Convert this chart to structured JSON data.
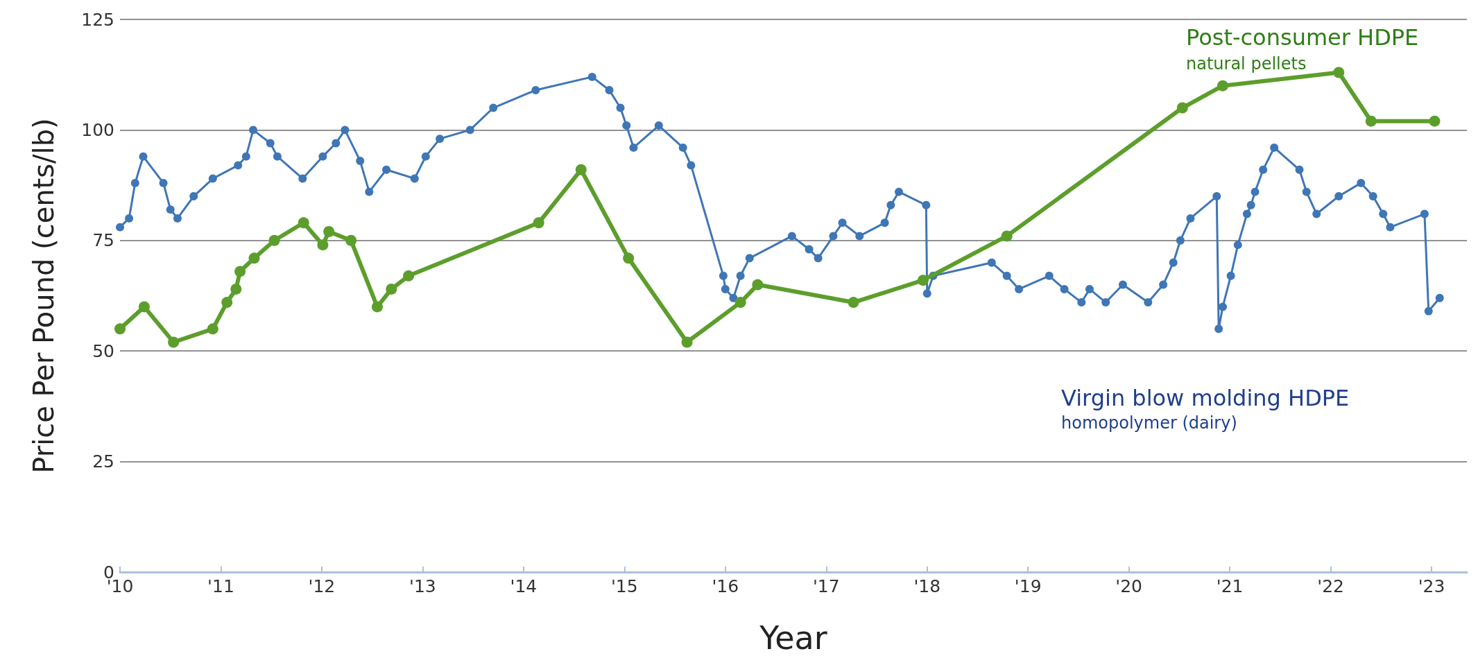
{
  "chart_data": {
    "type": "line",
    "xlabel": "Year",
    "ylabel": "Price Per Pound (cents/lb)",
    "xlim": [
      2010,
      2023.35
    ],
    "ylim": [
      0,
      125
    ],
    "xticks": [
      {
        "value": 2010,
        "label": "'10"
      },
      {
        "value": 2011,
        "label": "'11"
      },
      {
        "value": 2012,
        "label": "'12"
      },
      {
        "value": 2013,
        "label": "'13"
      },
      {
        "value": 2014,
        "label": "'14"
      },
      {
        "value": 2015,
        "label": "'15"
      },
      {
        "value": 2016,
        "label": "'16"
      },
      {
        "value": 2017,
        "label": "'17"
      },
      {
        "value": 2018,
        "label": "'18"
      },
      {
        "value": 2019,
        "label": "'19"
      },
      {
        "value": 2020,
        "label": "'20"
      },
      {
        "value": 2021,
        "label": "'21"
      },
      {
        "value": 2022,
        "label": "'22"
      },
      {
        "value": 2023,
        "label": "'23"
      }
    ],
    "yticks": [
      0,
      25,
      50,
      75,
      100,
      125
    ],
    "grid": "y",
    "marker": "circle",
    "line_style": "solid",
    "annotations": [
      "natural pellets",
      "homopolymer (dairy)"
    ],
    "series": [
      {
        "name": "Post-consumer HDPE",
        "color": "#5c9e2c",
        "x": [
          2010.0,
          2010.24,
          2010.53,
          2010.92,
          2011.06,
          2011.15,
          2011.19,
          2011.33,
          2011.53,
          2011.82,
          2012.01,
          2012.07,
          2012.29,
          2012.55,
          2012.69,
          2012.86,
          2014.15,
          2014.57,
          2015.04,
          2015.62,
          2016.15,
          2016.32,
          2017.27,
          2017.96,
          2018.79,
          2020.53,
          2020.93,
          2022.08,
          2022.4,
          2023.03
        ],
        "values": [
          55,
          60,
          52,
          55,
          61,
          64,
          68,
          71,
          75,
          79,
          74,
          77,
          75,
          60,
          64,
          67,
          79,
          91,
          71,
          52,
          61,
          65,
          61,
          66,
          76,
          105,
          110,
          113,
          102,
          102
        ]
      },
      {
        "name": "Virgin blow molding HDPE",
        "color": "#3f76b5",
        "x": [
          2010.0,
          2010.09,
          2010.15,
          2010.23,
          2010.43,
          2010.5,
          2010.57,
          2010.73,
          2010.92,
          2011.17,
          2011.25,
          2011.32,
          2011.49,
          2011.56,
          2011.81,
          2012.01,
          2012.14,
          2012.23,
          2012.38,
          2012.47,
          2012.64,
          2012.92,
          2013.03,
          2013.17,
          2013.47,
          2013.7,
          2014.12,
          2014.68,
          2014.85,
          2014.96,
          2015.02,
          2015.09,
          2015.34,
          2015.58,
          2015.66,
          2015.98,
          2016.0,
          2016.08,
          2016.15,
          2016.24,
          2016.66,
          2016.83,
          2016.92,
          2017.07,
          2017.16,
          2017.33,
          2017.58,
          2017.64,
          2017.72,
          2017.99,
          2018.0,
          2018.06,
          2018.64,
          2018.79,
          2018.91,
          2019.21,
          2019.36,
          2019.53,
          2019.61,
          2019.77,
          2019.94,
          2020.19,
          2020.34,
          2020.44,
          2020.51,
          2020.61,
          2020.87,
          2020.89,
          2020.93,
          2021.01,
          2021.08,
          2021.17,
          2021.21,
          2021.25,
          2021.33,
          2021.44,
          2021.69,
          2021.76,
          2021.86,
          2022.08,
          2022.3,
          2022.42,
          2022.52,
          2022.59,
          2022.93,
          2022.97,
          2023.08
        ],
        "values": [
          78,
          80,
          88,
          94,
          88,
          82,
          80,
          85,
          89,
          92,
          94,
          100,
          97,
          94,
          89,
          94,
          97,
          100,
          93,
          86,
          91,
          89,
          94,
          98,
          100,
          105,
          109,
          112,
          109,
          105,
          101,
          96,
          101,
          96,
          92,
          67,
          64,
          62,
          67,
          71,
          76,
          73,
          71,
          76,
          79,
          76,
          79,
          83,
          86,
          83,
          63,
          67,
          70,
          67,
          64,
          67,
          64,
          61,
          64,
          61,
          65,
          61,
          65,
          70,
          75,
          80,
          85,
          55,
          60,
          67,
          74,
          81,
          83,
          86,
          91,
          96,
          91,
          86,
          81,
          85,
          88,
          85,
          81,
          78,
          81,
          59,
          62
        ]
      }
    ]
  }
}
